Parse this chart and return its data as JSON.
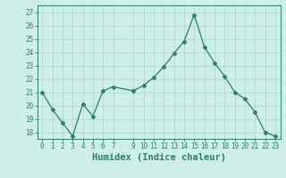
{
  "x": [
    0,
    1,
    2,
    3,
    4,
    5,
    6,
    7,
    9,
    10,
    11,
    12,
    13,
    14,
    15,
    16,
    17,
    18,
    19,
    20,
    21,
    22,
    23
  ],
  "y": [
    21,
    19.7,
    18.7,
    17.7,
    20.1,
    19.2,
    21.1,
    21.4,
    21.1,
    21.5,
    22.1,
    22.9,
    23.9,
    24.8,
    26.8,
    24.4,
    23.2,
    22.2,
    21.0,
    20.5,
    19.5,
    18.0,
    17.7
  ],
  "xlabel": "Humidex (Indice chaleur)",
  "ylim": [
    17.5,
    27.5
  ],
  "xlim": [
    -0.5,
    23.5
  ],
  "yticks": [
    18,
    19,
    20,
    21,
    22,
    23,
    24,
    25,
    26,
    27
  ],
  "xticks": [
    0,
    1,
    2,
    3,
    4,
    5,
    6,
    7,
    9,
    10,
    11,
    12,
    13,
    14,
    15,
    16,
    17,
    18,
    19,
    20,
    21,
    22,
    23
  ],
  "xtick_labels": [
    "0",
    "1",
    "2",
    "3",
    "4",
    "5",
    "6",
    "7",
    "9",
    "10",
    "11",
    "12",
    "13",
    "14",
    "15",
    "16",
    "17",
    "18",
    "19",
    "20",
    "21",
    "22",
    "23"
  ],
  "line_color": "#2d7d6e",
  "marker": "D",
  "marker_size": 2.5,
  "bg_color": "#ceeee8",
  "grid_color": "#aad6ce",
  "axis_color": "#2d7d6e",
  "tick_color": "#2d7d6e",
  "xlabel_fontsize": 7.5,
  "tick_fontsize": 5.5
}
